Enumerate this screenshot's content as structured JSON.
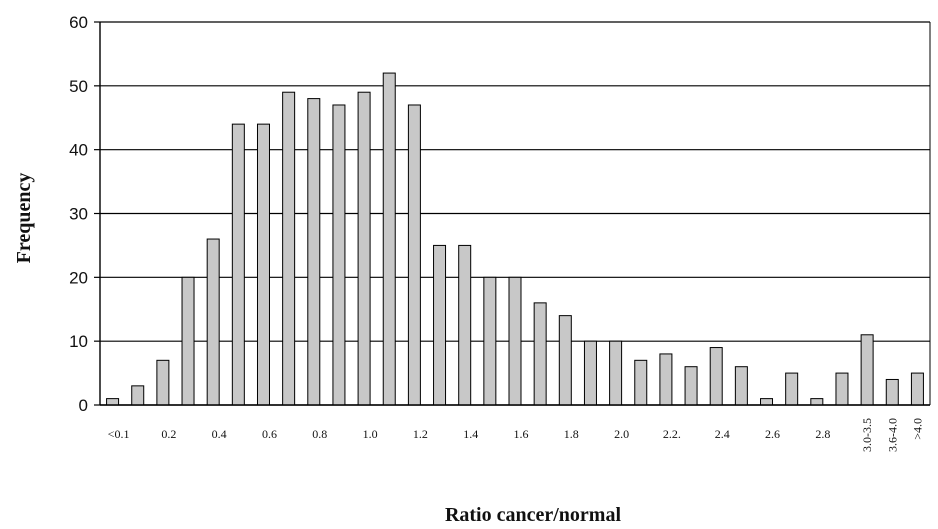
{
  "chart_data": {
    "type": "bar",
    "title": "",
    "xlabel": "Ratio cancer/normal",
    "ylabel": "Frequency",
    "ylim": [
      0,
      60
    ],
    "yticks": [
      0,
      10,
      20,
      30,
      40,
      50,
      60
    ],
    "grid": "horizontal",
    "bar_color": "#c8c8c8",
    "bar_edge_color": "#000000",
    "values": [
      1,
      3,
      7,
      20,
      26,
      44,
      44,
      49,
      48,
      47,
      49,
      52,
      47,
      25,
      25,
      20,
      20,
      16,
      14,
      10,
      10,
      7,
      8,
      6,
      9,
      6,
      1,
      5,
      1,
      5,
      11,
      4,
      5
    ],
    "tick_labels": [
      {
        "label": "<0.1",
        "rotated": false
      },
      {
        "label": "0.2",
        "rotated": false
      },
      {
        "label": "0.4",
        "rotated": false
      },
      {
        "label": "0.6",
        "rotated": false
      },
      {
        "label": "0.8",
        "rotated": false
      },
      {
        "label": "1.0",
        "rotated": false
      },
      {
        "label": "1.2",
        "rotated": false
      },
      {
        "label": "1.4",
        "rotated": false
      },
      {
        "label": "1.6",
        "rotated": false
      },
      {
        "label": "1.8",
        "rotated": false
      },
      {
        "label": "2.0",
        "rotated": false
      },
      {
        "label": "2.2.",
        "rotated": false
      },
      {
        "label": "2.4",
        "rotated": false
      },
      {
        "label": "2.6",
        "rotated": false
      },
      {
        "label": "2.8",
        "rotated": false
      },
      {
        "label": "3.0-3.5",
        "rotated": true
      },
      {
        "label": "3.6-4.0",
        "rotated": true
      },
      {
        "label": ">4.0",
        "rotated": true
      }
    ]
  }
}
